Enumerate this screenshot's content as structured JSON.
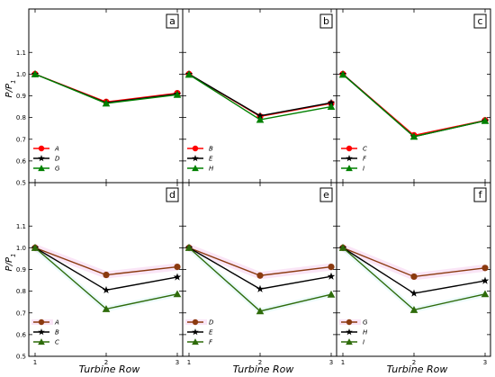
{
  "chart_data": [
    {
      "type": "line",
      "panel": "a",
      "x": [
        1,
        2,
        3
      ],
      "xlabel": "",
      "ylabel": "P/P1",
      "ylim": [
        0.5,
        1.3
      ],
      "series": [
        {
          "name": "A",
          "color": "#ff0000",
          "marker": "circle",
          "values": [
            1.0,
            0.872,
            0.912
          ]
        },
        {
          "name": "D",
          "color": "#000000",
          "marker": "star",
          "values": [
            1.0,
            0.868,
            0.908
          ]
        },
        {
          "name": "G",
          "color": "#008000",
          "marker": "triangle",
          "values": [
            1.0,
            0.865,
            0.905
          ]
        }
      ],
      "legend": "bottom-left"
    },
    {
      "type": "line",
      "panel": "b",
      "x": [
        1,
        2,
        3
      ],
      "xlabel": "",
      "ylabel": "",
      "ylim": [
        0.5,
        1.3
      ],
      "series": [
        {
          "name": "B",
          "color": "#ff0000",
          "marker": "circle",
          "values": [
            1.0,
            0.805,
            0.865
          ]
        },
        {
          "name": "E",
          "color": "#000000",
          "marker": "star",
          "values": [
            1.0,
            0.808,
            0.868
          ]
        },
        {
          "name": "H",
          "color": "#008000",
          "marker": "triangle",
          "values": [
            0.998,
            0.79,
            0.85
          ]
        }
      ],
      "legend": "bottom-left"
    },
    {
      "type": "line",
      "panel": "c",
      "x": [
        1,
        2,
        3
      ],
      "xlabel": "",
      "ylabel": "",
      "ylim": [
        0.5,
        1.3
      ],
      "series": [
        {
          "name": "C",
          "color": "#ff0000",
          "marker": "circle",
          "values": [
            1.0,
            0.718,
            0.787
          ]
        },
        {
          "name": "F",
          "color": "#000000",
          "marker": "star",
          "values": [
            1.0,
            0.712,
            0.785
          ]
        },
        {
          "name": "I",
          "color": "#008000",
          "marker": "triangle",
          "values": [
            0.998,
            0.712,
            0.785
          ]
        }
      ],
      "legend": "bottom-left"
    },
    {
      "type": "line",
      "panel": "d",
      "x": [
        1,
        2,
        3
      ],
      "xlabel": "Turbine Row",
      "ylabel": "P/P1",
      "ylim": [
        0.5,
        1.3
      ],
      "series": [
        {
          "name": "A",
          "color": "#8b3a0f",
          "marker": "circle",
          "values": [
            1.0,
            0.875,
            0.912
          ]
        },
        {
          "name": "B",
          "color": "#000000",
          "marker": "star",
          "values": [
            1.0,
            0.805,
            0.865
          ]
        },
        {
          "name": "C",
          "color": "#2e6b0a",
          "marker": "triangle",
          "values": [
            1.0,
            0.718,
            0.787
          ]
        }
      ],
      "legend": "bottom-left"
    },
    {
      "type": "line",
      "panel": "e",
      "x": [
        1,
        2,
        3
      ],
      "xlabel": "Turbine Row",
      "ylabel": "",
      "ylim": [
        0.5,
        1.3
      ],
      "series": [
        {
          "name": "D",
          "color": "#8b3a0f",
          "marker": "circle",
          "values": [
            1.0,
            0.872,
            0.912
          ]
        },
        {
          "name": "E",
          "color": "#000000",
          "marker": "star",
          "values": [
            1.0,
            0.81,
            0.868
          ]
        },
        {
          "name": "F",
          "color": "#2e6b0a",
          "marker": "triangle",
          "values": [
            1.0,
            0.708,
            0.785
          ]
        }
      ],
      "legend": "bottom-left"
    },
    {
      "type": "line",
      "panel": "f",
      "x": [
        1,
        2,
        3
      ],
      "xlabel": "Turbine Row",
      "ylabel": "",
      "ylim": [
        0.5,
        1.3
      ],
      "series": [
        {
          "name": "G",
          "color": "#8b3a0f",
          "marker": "circle",
          "values": [
            1.0,
            0.867,
            0.907
          ]
        },
        {
          "name": "H",
          "color": "#000000",
          "marker": "star",
          "values": [
            1.0,
            0.79,
            0.848
          ]
        },
        {
          "name": "I",
          "color": "#2e6b0a",
          "marker": "triangle",
          "values": [
            1.0,
            0.714,
            0.787
          ]
        }
      ],
      "legend": "bottom-left"
    }
  ],
  "axes": {
    "y_ticks": [
      "0.5",
      "0.6",
      "0.7",
      "0.8",
      "0.9",
      "1.0",
      "1.1"
    ],
    "x_ticks": [
      "1",
      "2",
      "3"
    ],
    "ylabel_main": "P/P",
    "ylabel_sub": "1",
    "xlabel": "Turbine Row"
  }
}
